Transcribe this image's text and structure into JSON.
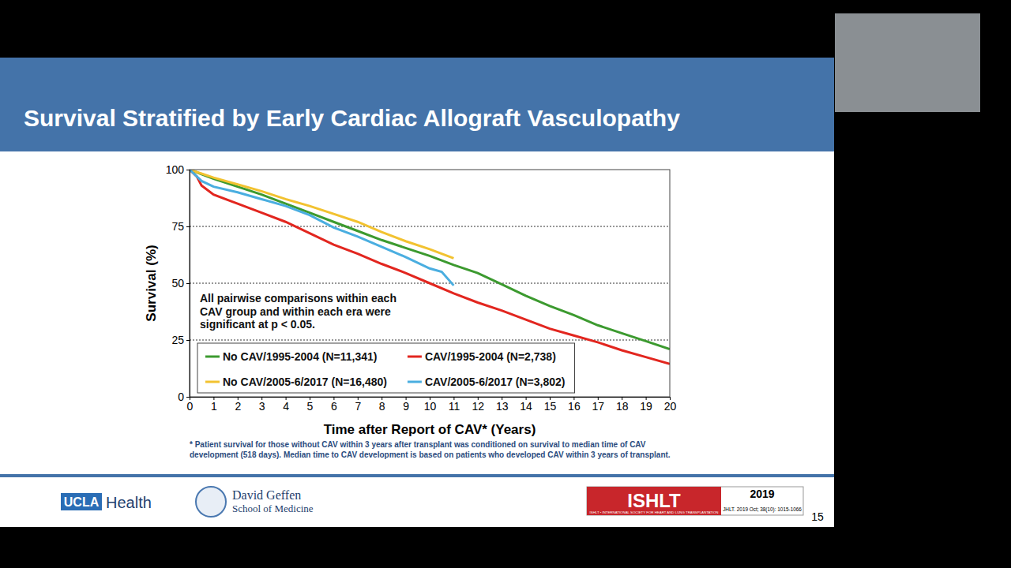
{
  "slide": {
    "title": "Survival Stratified by Early Cardiac Allograft Vasculopathy",
    "page_number": 15,
    "footer": {
      "ucla": "UCLA",
      "health": "Health",
      "school": [
        "David Geffen",
        "School of Medicine"
      ],
      "badge": "ISHLT",
      "badge_org": "ISHLT • INTERNATIONAL SOCIETY FOR HEART AND LUNG TRANSPLANTATION",
      "badge_year": "2019",
      "citation": "JHLT. 2019 Oct; 38(10): 1015-1066"
    }
  },
  "chart_data": {
    "type": "line",
    "x_label": "Time after Report of CAV* (Years)",
    "y_label": "Survival (%)",
    "annotation": [
      "All pairwise comparisons within each",
      "CAV group and within each era were",
      "significant at p < 0.05."
    ],
    "footnote": [
      "* Patient survival for those without CAV within 3 years after transplant was conditioned on survival to median time of CAV",
      "development (518 days). Median time to CAV development is based on patients who developed CAV within 3 years of transplant."
    ],
    "xlim": [
      0,
      20
    ],
    "xticks": [
      0,
      1,
      2,
      3,
      4,
      5,
      6,
      7,
      8,
      9,
      10,
      11,
      12,
      13,
      14,
      15,
      16,
      17,
      18,
      19,
      20
    ],
    "ylim": [
      0,
      100
    ],
    "yticks": [
      0,
      25,
      50,
      75,
      100
    ],
    "grid": true,
    "legend": "lower left",
    "series": [
      {
        "name": "No CAV/1995-2004 (N=11,341)",
        "color": "#3c9a2f",
        "x": [
          0,
          0.5,
          1,
          2,
          3,
          4,
          5,
          6,
          7,
          8,
          9,
          10,
          11,
          12,
          13,
          14,
          15,
          16,
          17,
          18,
          19,
          20
        ],
        "values": [
          100,
          98,
          96,
          92.5,
          89,
          85,
          81,
          77,
          73,
          69,
          65.5,
          62,
          58,
          54.5,
          49.5,
          44.5,
          40,
          36,
          31.5,
          28,
          24.5,
          21
        ]
      },
      {
        "name": "CAV/1995-2004 (N=2,738)",
        "color": "#e2261f",
        "x": [
          0,
          0.3,
          0.5,
          1,
          2,
          3,
          4,
          5,
          6,
          7,
          8,
          9,
          10,
          11,
          12,
          13,
          14,
          15,
          16,
          17,
          18,
          19,
          20
        ],
        "values": [
          100,
          97,
          93,
          89,
          85,
          81,
          77,
          72,
          67,
          63,
          58.5,
          54.5,
          50,
          45.5,
          41.5,
          38,
          34,
          30,
          27,
          24,
          20.5,
          17.5,
          14.5
        ]
      },
      {
        "name": "No CAV/2005-6/2017 (N=16,480)",
        "color": "#f2c230",
        "x": [
          0,
          1,
          2,
          3,
          4,
          5,
          6,
          7,
          8,
          9,
          10,
          11
        ],
        "values": [
          100,
          96.5,
          93.5,
          90.5,
          87,
          84,
          80.5,
          77,
          72.5,
          68.5,
          65,
          61
        ]
      },
      {
        "name": "CAV/2005-6/2017 (N=3,802)",
        "color": "#4aaee0",
        "x": [
          0,
          0.5,
          1,
          2,
          3,
          4,
          5,
          6,
          7,
          8,
          9,
          10,
          10.5,
          11
        ],
        "values": [
          100,
          95,
          92.5,
          90,
          87,
          84,
          80,
          74.5,
          70.5,
          66,
          61.5,
          56.5,
          55,
          49
        ]
      }
    ]
  }
}
